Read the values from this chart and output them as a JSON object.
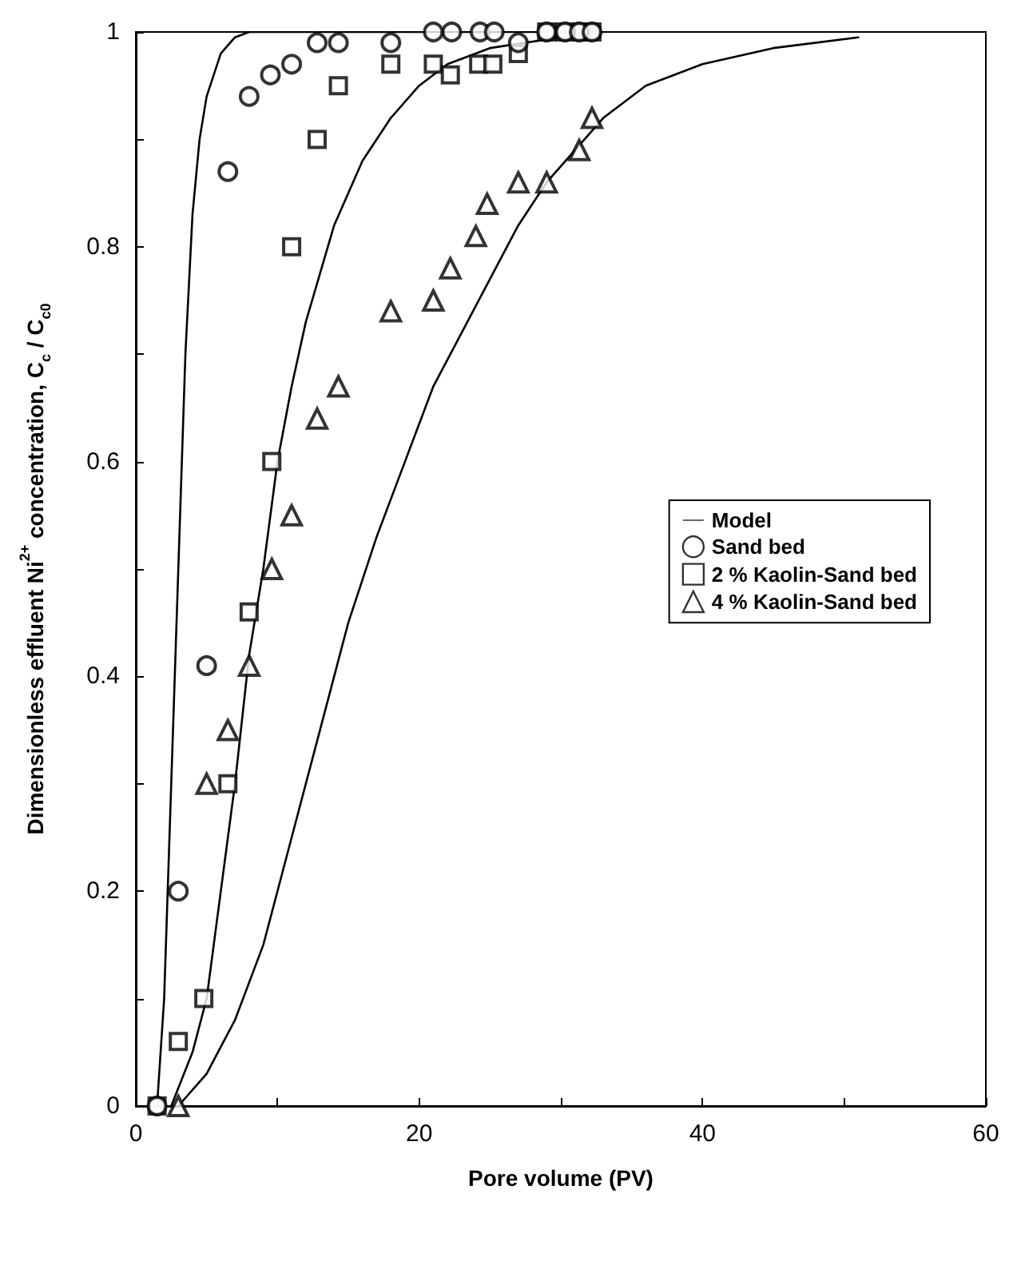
{
  "chart_data": {
    "type": "scatter",
    "xlabel": "Pore volume (PV)",
    "ylabel": "Dimensionless effluent Ni$^{2+}$ concentration, C$_{c}$ / C$_{c0}$",
    "xlim": [
      0,
      60
    ],
    "ylim": [
      0,
      1
    ],
    "xticks": [
      0,
      {
        "value": 10,
        "label": null
      },
      20,
      {
        "value": 30,
        "label": null
      },
      40,
      {
        "value": 50,
        "label": null
      },
      60
    ],
    "yticks": [
      0,
      {
        "value": 0.1,
        "label": null
      },
      0.2,
      {
        "value": 0.3,
        "label": null
      },
      0.4,
      {
        "value": 0.5,
        "label": null
      },
      0.6,
      {
        "value": 0.7,
        "label": null
      },
      0.8,
      {
        "value": 0.9,
        "label": null
      },
      1
    ],
    "grid": false,
    "legend": "right",
    "series": [
      {
        "name": "Model",
        "type": "line",
        "color": "#000000",
        "marker": "none",
        "line_style": "solid",
        "x": [
          1.5,
          2,
          2.5,
          3,
          3.5,
          4,
          4.5,
          5,
          6,
          7,
          8,
          10,
          15,
          20,
          25,
          32
        ],
        "values": [
          0,
          0.1,
          0.3,
          0.5,
          0.7,
          0.83,
          0.9,
          0.94,
          0.98,
          0.995,
          1,
          1,
          1,
          1,
          1,
          1
        ]
      },
      {
        "type": "line",
        "color": "#000000",
        "marker": "none",
        "line_style": "solid",
        "x": [
          2.5,
          4,
          5,
          6,
          7,
          8,
          9,
          10,
          11,
          12,
          14,
          16,
          18,
          20,
          22,
          25,
          30,
          33
        ],
        "values": [
          0,
          0.05,
          0.1,
          0.2,
          0.3,
          0.42,
          0.5,
          0.6,
          0.67,
          0.73,
          0.82,
          0.88,
          0.92,
          0.95,
          0.97,
          0.985,
          0.995,
          1
        ]
      },
      {
        "type": "line",
        "color": "#000000",
        "marker": "none",
        "line_style": "solid",
        "x": [
          3,
          5,
          7,
          9,
          11,
          13,
          15,
          17,
          19,
          21,
          23,
          25,
          27,
          29,
          31,
          33,
          36,
          40,
          45,
          51
        ],
        "values": [
          0,
          0.03,
          0.08,
          0.15,
          0.25,
          0.35,
          0.45,
          0.53,
          0.6,
          0.67,
          0.72,
          0.77,
          0.82,
          0.86,
          0.89,
          0.92,
          0.95,
          0.97,
          0.985,
          0.995
        ]
      },
      {
        "name": "Sand bed",
        "type": "scatter",
        "color": "#000000",
        "marker": "circle",
        "x": [
          1.5,
          3,
          5,
          6.5,
          8,
          9.5,
          11,
          12.8,
          14.3,
          18,
          21,
          22.3,
          24.3,
          25.3,
          27,
          29,
          30.3,
          31.3,
          32.2
        ],
        "values": [
          0,
          0.2,
          0.41,
          0.87,
          0.94,
          0.96,
          0.97,
          0.99,
          0.99,
          0.99,
          1,
          1,
          1,
          1,
          0.99,
          1,
          1,
          1,
          1
        ]
      },
      {
        "name": "2 % Kaolin-Sand bed",
        "type": "scatter",
        "color": "#000000",
        "marker": "square",
        "x": [
          1.5,
          3,
          4.8,
          6.5,
          8,
          9.6,
          11,
          12.8,
          14.3,
          18,
          21,
          22.2,
          24.2,
          25.2,
          27,
          29,
          30.3,
          31.5,
          32.2
        ],
        "values": [
          0,
          0.06,
          0.1,
          0.3,
          0.46,
          0.6,
          0.8,
          0.9,
          0.95,
          0.97,
          0.97,
          0.96,
          0.97,
          0.97,
          0.98,
          1,
          1,
          1,
          1
        ]
      },
      {
        "name": "4 % Kaolin-Sand bed",
        "type": "scatter",
        "color": "#000000",
        "marker": "triangle",
        "x": [
          3,
          5,
          6.5,
          8,
          9.6,
          11,
          12.8,
          14.3,
          18,
          21,
          22.2,
          24,
          24.8,
          27,
          29,
          31.3,
          32.2
        ],
        "values": [
          0,
          0.3,
          0.35,
          0.41,
          0.5,
          0.55,
          0.64,
          0.67,
          0.74,
          0.75,
          0.78,
          0.81,
          0.84,
          0.86,
          0.86,
          0.89,
          0.92
        ]
      }
    ]
  }
}
